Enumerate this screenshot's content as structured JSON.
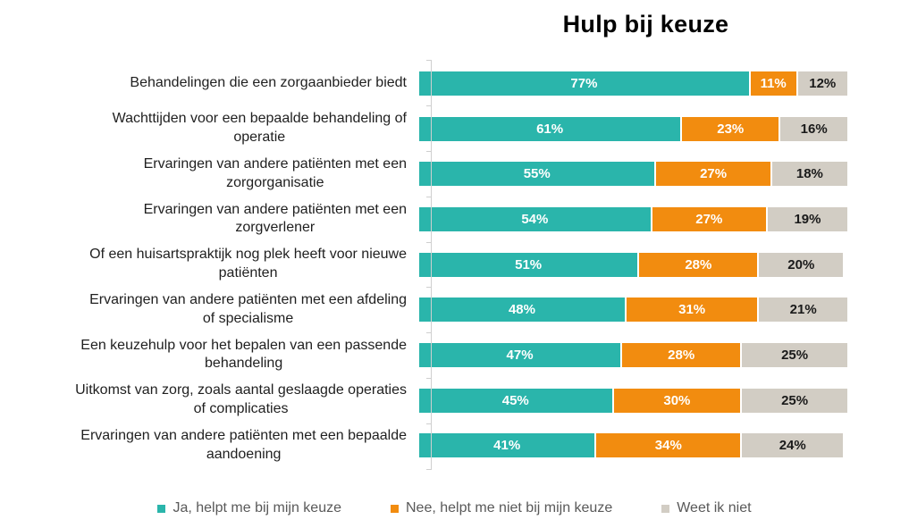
{
  "title": "Hulp bij keuze",
  "colors": {
    "axis": "#cfcfcf",
    "category_text": "#1f1f1f",
    "legend_text": "#595959",
    "background": "#ffffff"
  },
  "legend": {
    "items": [
      {
        "label": "Ja, helpt me bij mijn keuze",
        "color": "#2ab5ab"
      },
      {
        "label": "Nee, helpt me niet bij mijn keuze",
        "color": "#f28c0f"
      },
      {
        "label": "Weet ik niet",
        "color": "#d2cdc4"
      }
    ]
  },
  "chart_data": {
    "type": "bar",
    "orientation": "horizontal",
    "stacked": true,
    "title": "Hulp bij keuze",
    "value_suffix": "%",
    "xlim": [
      0,
      100
    ],
    "grid": false,
    "legend_position": "bottom",
    "categories": [
      "Behandelingen die een zorgaanbieder biedt",
      "Wachttijden voor een bepaalde behandeling of\noperatie",
      "Ervaringen van andere patiënten met een\nzorgorganisatie",
      "Ervaringen van andere patiënten met een\nzorgverlener",
      "Of een huisartspraktijk nog plek heeft voor nieuwe\npatiënten",
      "Ervaringen van andere patiënten met een afdeling\nof specialisme",
      "Een keuzehulp voor het bepalen van een passende\nbehandeling",
      "Uitkomst van zorg, zoals aantal geslaagde operaties\nof complicaties",
      "Ervaringen van andere patiënten met een bepaalde\naandoening"
    ],
    "series": [
      {
        "name": "Ja, helpt me bij mijn keuze",
        "color": "#2ab5ab",
        "label_color": "#ffffff",
        "values": [
          77,
          61,
          55,
          54,
          51,
          48,
          47,
          45,
          41
        ]
      },
      {
        "name": "Nee, helpt me niet bij mijn keuze",
        "color": "#f28c0f",
        "label_color": "#ffffff",
        "values": [
          11,
          23,
          27,
          27,
          28,
          31,
          28,
          30,
          34
        ]
      },
      {
        "name": "Weet ik niet",
        "color": "#d2cdc4",
        "label_color": "#1a1a1a",
        "values": [
          12,
          16,
          18,
          19,
          20,
          21,
          25,
          25,
          24
        ]
      }
    ]
  }
}
